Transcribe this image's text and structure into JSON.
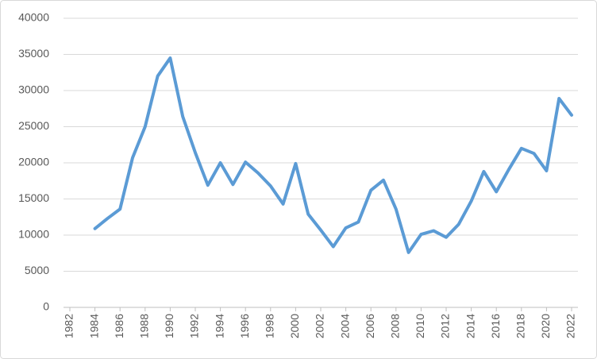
{
  "chart_data": {
    "type": "line",
    "x": [
      1984,
      1985,
      1986,
      1987,
      1988,
      1989,
      1990,
      1991,
      1992,
      1993,
      1994,
      1995,
      1996,
      1997,
      1998,
      1999,
      2000,
      2001,
      2002,
      2003,
      2004,
      2005,
      2006,
      2007,
      2008,
      2009,
      2010,
      2011,
      2012,
      2013,
      2014,
      2015,
      2016,
      2017,
      2018,
      2019,
      2020,
      2021,
      2022
    ],
    "series": [
      {
        "color": "#5b9bd5",
        "values": [
          10900,
          12300,
          13600,
          20700,
          25000,
          32000,
          34500,
          26400,
          21400,
          16900,
          20000,
          17000,
          20100,
          18600,
          16800,
          14300,
          19900,
          12900,
          10700,
          8400,
          11000,
          11800,
          16200,
          17600,
          13600,
          7600,
          10100,
          10600,
          9700,
          11500,
          14700,
          18800,
          16000,
          19100,
          22000,
          21300,
          18900,
          28900,
          26600
        ]
      }
    ],
    "xlim": [
      1982,
      2022
    ],
    "xticks": [
      1982,
      1984,
      1986,
      1988,
      1990,
      1992,
      1994,
      1996,
      1998,
      2000,
      2002,
      2004,
      2006,
      2008,
      2010,
      2012,
      2014,
      2016,
      2018,
      2020,
      2022
    ],
    "ylim": [
      0,
      40000
    ],
    "yticks": [
      0,
      5000,
      10000,
      15000,
      20000,
      25000,
      30000,
      35000,
      40000
    ],
    "grid": true
  }
}
